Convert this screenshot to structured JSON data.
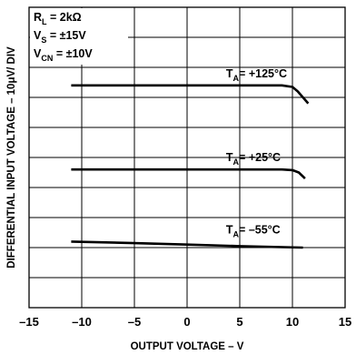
{
  "chart_data": {
    "type": "line",
    "xlabel": "OUTPUT VOLTAGE – V",
    "ylabel": "DIFFERENTIAL INPUT VOLTAGE – 10μV/ DIV",
    "xlim": [
      -15,
      15
    ],
    "x_ticks": [
      "–15",
      "–10",
      "–5",
      "0",
      "5",
      "10",
      "15"
    ],
    "grid": true,
    "conditions": [
      {
        "main": "R",
        "sub": "L",
        "rest": " = 2kΩ"
      },
      {
        "main": "V",
        "sub": "S",
        "rest": " = ±15V"
      },
      {
        "main": "V",
        "sub": "CN",
        "rest": " = ±10V"
      }
    ],
    "y_divisions": 10,
    "series": [
      {
        "name": "T_A= +125°C",
        "label_main": "T",
        "label_sub": "A",
        "label_rest": "= +125°C",
        "x": [
          -11,
          0,
          9,
          10,
          10.5,
          11,
          11.5
        ],
        "y": [
          7.4,
          7.4,
          7.4,
          7.35,
          7.2,
          7.0,
          6.8
        ]
      },
      {
        "name": "T_A= +25°C",
        "label_main": "T",
        "label_sub": "A",
        "label_rest": "= +25°C",
        "x": [
          -11,
          0,
          9,
          10,
          10.6,
          11.2
        ],
        "y": [
          4.6,
          4.6,
          4.6,
          4.58,
          4.5,
          4.3
        ]
      },
      {
        "name": "T_A= –55°C",
        "label_main": "T",
        "label_sub": "A",
        "label_rest": "= –55°C",
        "x": [
          -11,
          -5,
          0,
          5,
          11
        ],
        "y": [
          2.2,
          2.15,
          2.1,
          2.05,
          2.0
        ]
      }
    ]
  }
}
